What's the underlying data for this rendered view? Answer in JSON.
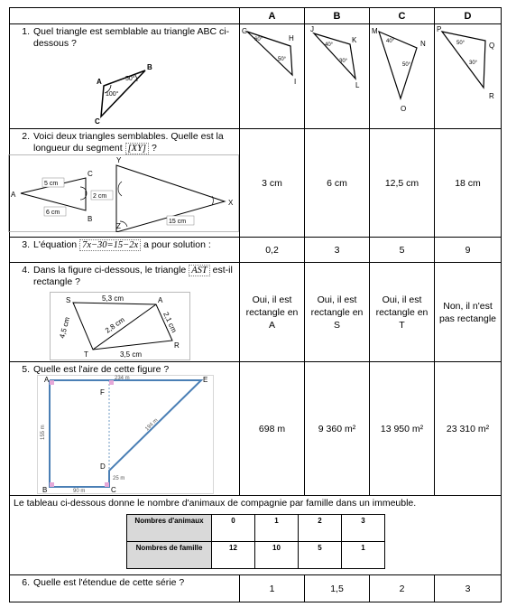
{
  "columns": [
    "A",
    "B",
    "C",
    "D"
  ],
  "q1": {
    "number": "1.",
    "text": "Quel triangle est semblable au triangle ABC ci-dessous ?",
    "labels": {
      "A": "A",
      "B": "B",
      "C": "C",
      "angle50": "50°",
      "angle100": "100°"
    },
    "options": [
      {
        "v1": "G",
        "v2": "H",
        "v3": "I",
        "a1": "60°",
        "a2": "50°"
      },
      {
        "v1": "J",
        "v2": "K",
        "v3": "L",
        "a1": "40°",
        "a2": "30°"
      },
      {
        "v1": "M",
        "v2": "N",
        "v3": "O",
        "a1": "40°",
        "a2": "50°"
      },
      {
        "v1": "P",
        "v2": "Q",
        "v3": "R",
        "a1": "50°",
        "a2": "30°"
      }
    ]
  },
  "q2": {
    "number": "2.",
    "text_before": "Voici deux triangles semblables. Quelle est la longueur du segment",
    "segment": "[XY]",
    "text_after": "?",
    "labels": {
      "Y": "Y",
      "A": "A",
      "C": "C",
      "B": "B",
      "Z": "Z",
      "X": "X",
      "ac": "5 cm",
      "bc": "2 cm",
      "ab": "6 cm",
      "zx": "15 cm"
    },
    "answers": [
      "3 cm",
      "6 cm",
      "12,5 cm",
      "18 cm"
    ]
  },
  "q3": {
    "number": "3.",
    "text_before": "L'équation",
    "equation": "7x−30=15−2x",
    "text_after": "a pour solution :",
    "answers": [
      "0,2",
      "3",
      "5",
      "9"
    ]
  },
  "q4": {
    "number": "4.",
    "text_before": "Dans la figure ci-dessous, le triangle",
    "triangle": "AST",
    "text_after": "est-il rectangle ?",
    "labels": {
      "S": "S",
      "A": "A",
      "T": "T",
      "R": "R",
      "sa": "5,3 cm",
      "st": "4,5 cm",
      "at": "2,8 cm",
      "ar": "2,1 cm",
      "tr": "3,5 cm"
    },
    "answers": [
      "Oui, il est rectangle en A",
      "Oui, il est rectangle en S",
      "Oui, il est rectangle en T",
      "Non, il n'est pas rectangle"
    ]
  },
  "q5": {
    "number": "5.",
    "text": "Quelle est l'aire de cette figure ?",
    "labels": {
      "A": "A",
      "E": "E",
      "F": "F",
      "D": "D",
      "B": "B",
      "C": "C",
      "ae": "234 m",
      "ab": "155 m",
      "de": "194 m",
      "dc": "25 m",
      "bc": "90 m"
    },
    "answers": [
      "698 m",
      "9 360 m²",
      "13 950 m²",
      "23 310 m²"
    ]
  },
  "stats": {
    "intro": "Le tableau ci-dessous donne le nombre d'animaux de compagnie par famille dans un immeuble.",
    "row1_label": "Nombres d'animaux",
    "row1": [
      "0",
      "1",
      "2",
      "3"
    ],
    "row2_label": "Nombres de famille",
    "row2": [
      "12",
      "10",
      "5",
      "1"
    ]
  },
  "q6": {
    "number": "6.",
    "text": "Quelle est l'étendue de cette série ?",
    "answers": [
      "1",
      "1,5",
      "2",
      "3"
    ]
  }
}
